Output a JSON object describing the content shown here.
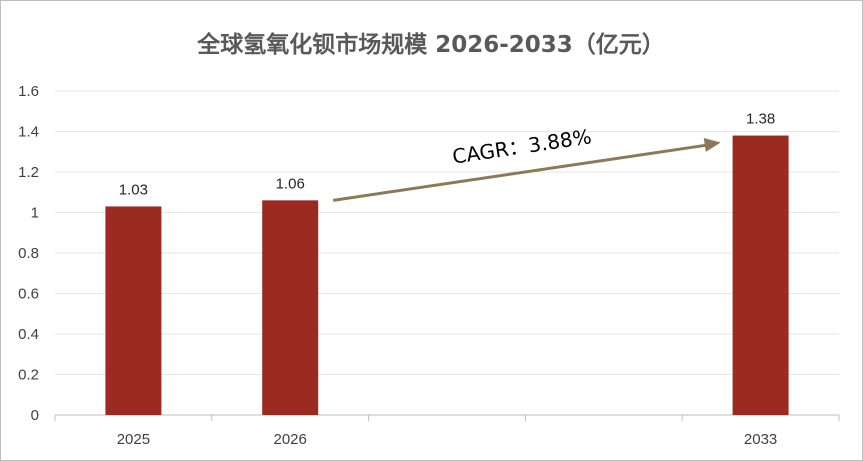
{
  "chart_data": {
    "type": "bar",
    "title": "全球氢氧化钡市场规模 2026-2033（亿元）",
    "xlabel": "",
    "ylabel": "",
    "categories": [
      "2025",
      "2026",
      "",
      "",
      "2033"
    ],
    "values": [
      1.03,
      1.06,
      null,
      null,
      1.38
    ],
    "data_labels": [
      "1.03",
      "1.06",
      "",
      "",
      "1.38"
    ],
    "ylim": [
      0,
      1.6
    ],
    "yticks": [
      0,
      0.2,
      0.4,
      0.6,
      0.8,
      1,
      1.2,
      1.4,
      1.6
    ],
    "ytick_labels": [
      "0",
      "0.2",
      "0.4",
      "0.6",
      "0.8",
      "1",
      "1.2",
      "1.4",
      "1.6"
    ],
    "grid": true,
    "legend": "none",
    "colors": {
      "bar": "#9b2b20",
      "grid": "#e6e6e6",
      "axis": "#bfbfbf",
      "arrow": "#8b7a55"
    },
    "annotations": [
      {
        "text": "CAGR：3.88%",
        "from_category": "2026",
        "to_category": "2033",
        "style": "arrow"
      }
    ]
  }
}
